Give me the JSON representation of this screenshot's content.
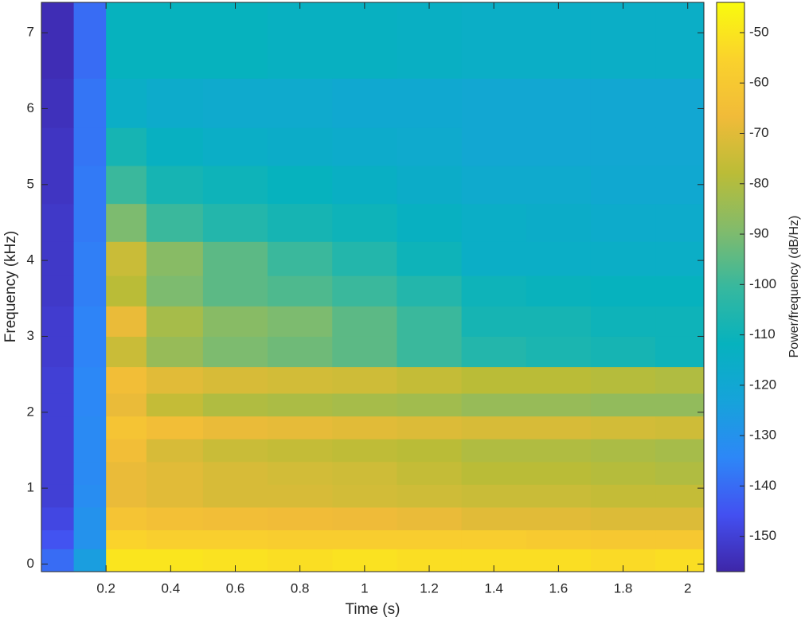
{
  "chart_data": {
    "type": "heatmap",
    "xlabel": "Time (s)",
    "ylabel": "Frequency (kHz)",
    "colorbar_label": "Power/frequency (dB/Hz)",
    "xlim": [
      0,
      2.05
    ],
    "ylim": [
      -0.1,
      7.4
    ],
    "clim": [
      -157,
      -44
    ],
    "xticks": [
      0.2,
      0.4,
      0.6,
      0.8,
      1,
      1.2,
      1.4,
      1.6,
      1.8,
      2
    ],
    "yticks": [
      0,
      1,
      2,
      3,
      4,
      5,
      6,
      7
    ],
    "cticks": [
      -50,
      -60,
      -70,
      -80,
      -90,
      -100,
      -110,
      -120,
      -130,
      -140,
      -150
    ],
    "colormap": [
      "#3e26a8",
      "#4350f1",
      "#2d87f7",
      "#16a3da",
      "#06b2be",
      "#37b89e",
      "#82bb6b",
      "#bbbc37",
      "#f1bb39",
      "#fad22c",
      "#f9fb0e"
    ],
    "x": [
      0.05,
      0.15,
      0.25,
      0.4,
      0.6,
      0.8,
      1.0,
      1.2,
      1.4,
      1.6,
      1.8,
      2.0
    ],
    "y": [
      0.1,
      0.3,
      0.6,
      0.9,
      1.2,
      1.5,
      1.8,
      2.1,
      2.4,
      2.8,
      3.2,
      3.6,
      4.0,
      4.5,
      5.0,
      5.5,
      6.0,
      6.8
    ],
    "z": [
      [
        -140,
        -125,
        -50,
        -50,
        -51,
        -52,
        -51,
        -52,
        -52,
        -52,
        -53,
        -52
      ],
      [
        -145,
        -130,
        -55,
        -57,
        -57,
        -58,
        -58,
        -58,
        -58,
        -59,
        -60,
        -60
      ],
      [
        -148,
        -130,
        -62,
        -64,
        -65,
        -66,
        -67,
        -68,
        -70,
        -70,
        -71,
        -71
      ],
      [
        -150,
        -132,
        -68,
        -70,
        -72,
        -72,
        -73,
        -74,
        -75,
        -75,
        -76,
        -76
      ],
      [
        -150,
        -133,
        -68,
        -70,
        -72,
        -73,
        -74,
        -76,
        -78,
        -78,
        -79,
        -80
      ],
      [
        -150,
        -133,
        -65,
        -72,
        -75,
        -76,
        -77,
        -78,
        -80,
        -80,
        -81,
        -82
      ],
      [
        -150,
        -133,
        -62,
        -65,
        -68,
        -69,
        -70,
        -71,
        -72,
        -72,
        -73,
        -74
      ],
      [
        -150,
        -134,
        -68,
        -76,
        -80,
        -81,
        -82,
        -83,
        -85,
        -85,
        -86,
        -86
      ],
      [
        -150,
        -134,
        -65,
        -70,
        -72,
        -73,
        -74,
        -76,
        -78,
        -78,
        -79,
        -80
      ],
      [
        -151,
        -135,
        -75,
        -85,
        -90,
        -92,
        -95,
        -100,
        -105,
        -107,
        -108,
        -110
      ],
      [
        -151,
        -135,
        -68,
        -82,
        -88,
        -90,
        -95,
        -100,
        -108,
        -108,
        -110,
        -110
      ],
      [
        -152,
        -136,
        -78,
        -90,
        -95,
        -97,
        -100,
        -105,
        -110,
        -111,
        -112,
        -112
      ],
      [
        -152,
        -136,
        -75,
        -88,
        -95,
        -100,
        -105,
        -110,
        -115,
        -115,
        -115,
        -115
      ],
      [
        -152,
        -137,
        -90,
        -100,
        -105,
        -108,
        -110,
        -113,
        -115,
        -116,
        -117,
        -117
      ],
      [
        -153,
        -137,
        -100,
        -108,
        -110,
        -112,
        -114,
        -116,
        -118,
        -118,
        -119,
        -119
      ],
      [
        -153,
        -138,
        -108,
        -113,
        -115,
        -116,
        -117,
        -118,
        -120,
        -120,
        -120,
        -120
      ],
      [
        -154,
        -138,
        -115,
        -117,
        -118,
        -118,
        -119,
        -119,
        -120,
        -120,
        -120,
        -120
      ],
      [
        -155,
        -140,
        -112,
        -112,
        -112,
        -113,
        -113,
        -114,
        -115,
        -115,
        -115,
        -115
      ]
    ]
  }
}
